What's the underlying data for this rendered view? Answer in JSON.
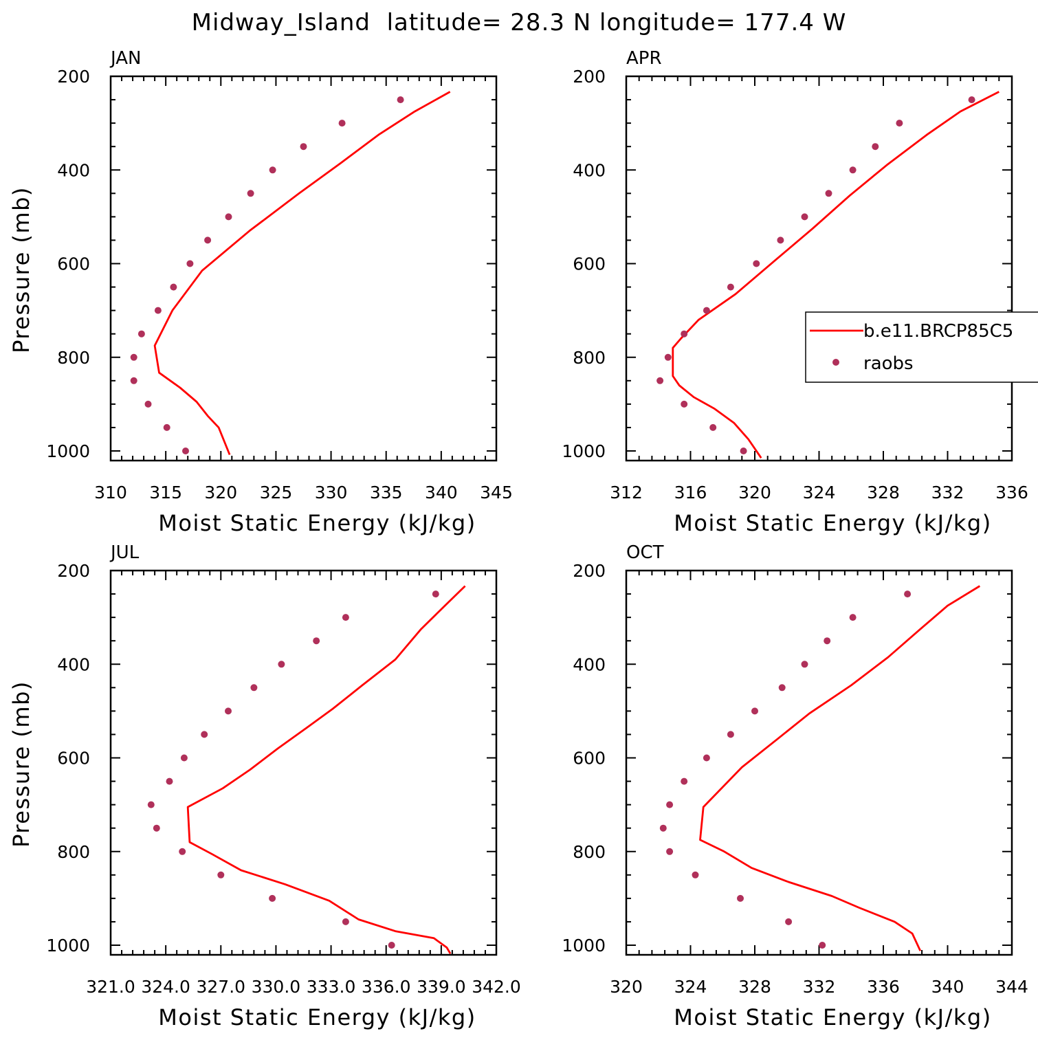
{
  "title": "Midway_Island  latitude= 28.3 N longitude= 177.4 W",
  "legend": {
    "model_label": "b.e11.BRCP85C5",
    "obs_label": "raobs",
    "model_color": "#ff0000",
    "obs_color": "#b0305a"
  },
  "chart_data": [
    {
      "type": "line",
      "title": "JAN",
      "xlabel": "Moist Static Energy (kJ/kg)",
      "ylabel": "Pressure (mb)",
      "xlim": [
        310,
        345
      ],
      "xticks": [
        310,
        315,
        320,
        325,
        330,
        335,
        340,
        345
      ],
      "xtick_labels": [
        "310",
        "315",
        "320",
        "325",
        "330",
        "335",
        "340",
        "345"
      ],
      "ylim": [
        1025,
        200
      ],
      "yticks": [
        200,
        400,
        600,
        800,
        1000
      ],
      "yticks_minor": [
        250,
        300,
        350,
        450,
        500,
        550,
        650,
        700,
        750,
        850,
        900,
        950
      ],
      "series": [
        {
          "name": "b.e11.BRCP85C5",
          "style": "line",
          "x": [
            340.8,
            337.6,
            334.3,
            330.9,
            327.1,
            322.6,
            318.3,
            315.6,
            314.0,
            314.4,
            316.3,
            317.8,
            318.8,
            319.8,
            320.8
          ],
          "y": [
            233,
            275,
            325,
            385,
            450,
            530,
            615,
            700,
            775,
            833,
            865,
            895,
            925,
            950,
            1008
          ]
        },
        {
          "name": "raobs",
          "style": "scatter",
          "x": [
            336.3,
            331.0,
            327.5,
            324.7,
            322.7,
            320.7,
            318.8,
            317.2,
            315.7,
            314.3,
            312.8,
            312.1,
            312.1,
            313.4,
            315.1,
            316.8
          ],
          "y": [
            250,
            300,
            350,
            400,
            450,
            500,
            550,
            600,
            650,
            700,
            750,
            800,
            850,
            900,
            950,
            1000
          ]
        }
      ]
    },
    {
      "type": "line",
      "title": "APR",
      "xlabel": "Moist Static Energy (kJ/kg)",
      "ylabel": "",
      "xlim": [
        312,
        336
      ],
      "xticks": [
        312,
        316,
        320,
        324,
        328,
        332,
        336
      ],
      "xtick_labels": [
        "312",
        "316",
        "320",
        "324",
        "328",
        "332",
        "336"
      ],
      "ylim": [
        1025,
        200
      ],
      "yticks": [
        200,
        400,
        600,
        800,
        1000
      ],
      "yticks_minor": [
        250,
        300,
        350,
        450,
        500,
        550,
        650,
        700,
        750,
        850,
        900,
        950
      ],
      "series": [
        {
          "name": "b.e11.BRCP85C5",
          "style": "line",
          "x": [
            335.2,
            332.8,
            330.7,
            328.2,
            325.9,
            323.6,
            321.2,
            318.8,
            316.5,
            315.4,
            314.9,
            314.9,
            315.3,
            316.2,
            317.5,
            318.7,
            319.6,
            320.4
          ],
          "y": [
            233,
            275,
            325,
            390,
            455,
            525,
            595,
            665,
            720,
            760,
            780,
            840,
            860,
            885,
            910,
            940,
            975,
            1015
          ]
        },
        {
          "name": "raobs",
          "style": "scatter",
          "x": [
            333.5,
            329.0,
            327.5,
            326.1,
            324.6,
            323.1,
            321.6,
            320.1,
            318.5,
            317.0,
            315.6,
            314.6,
            314.1,
            315.6,
            317.4,
            319.3
          ],
          "y": [
            250,
            300,
            350,
            400,
            450,
            500,
            550,
            600,
            650,
            700,
            750,
            800,
            850,
            900,
            950,
            1000
          ]
        }
      ]
    },
    {
      "type": "line",
      "title": "JUL",
      "xlabel": "Moist Static Energy (kJ/kg)",
      "ylabel": "Pressure (mb)",
      "xlim": [
        321.0,
        342.0
      ],
      "xticks": [
        321.0,
        324.0,
        327.0,
        330.0,
        333.0,
        336.0,
        339.0,
        342.0
      ],
      "xtick_labels": [
        "321.0",
        "324.0",
        "327.0",
        "330.0",
        "333.0",
        "336.0",
        "339.0",
        "342.0"
      ],
      "ylim": [
        1025,
        200
      ],
      "yticks": [
        200,
        400,
        600,
        800,
        1000
      ],
      "yticks_minor": [
        250,
        300,
        350,
        450,
        500,
        550,
        650,
        700,
        750,
        850,
        900,
        950
      ],
      "series": [
        {
          "name": "b.e11.BRCP85C5",
          "style": "line",
          "x": [
            340.3,
            339.2,
            337.9,
            336.5,
            334.7,
            333.1,
            331.7,
            330.1,
            328.6,
            327.1,
            325.2,
            325.3,
            326.5,
            328.1,
            330.5,
            332.9,
            334.5,
            336.5,
            338.6,
            339.3,
            339.5
          ],
          "y": [
            233,
            275,
            325,
            390,
            445,
            495,
            535,
            580,
            625,
            665,
            705,
            780,
            805,
            840,
            870,
            905,
            945,
            970,
            985,
            1005,
            1018
          ]
        },
        {
          "name": "raobs",
          "style": "scatter",
          "x": [
            338.7,
            333.8,
            332.2,
            330.3,
            328.8,
            327.4,
            326.1,
            325.0,
            324.2,
            323.2,
            323.5,
            324.9,
            327.0,
            329.8,
            333.8,
            336.3
          ],
          "y": [
            250,
            300,
            350,
            400,
            450,
            500,
            550,
            600,
            650,
            700,
            750,
            800,
            850,
            900,
            950,
            1000
          ]
        }
      ]
    },
    {
      "type": "line",
      "title": "OCT",
      "xlabel": "Moist Static Energy (kJ/kg)",
      "ylabel": "",
      "xlim": [
        320,
        344
      ],
      "xticks": [
        320,
        324,
        328,
        332,
        336,
        340,
        344
      ],
      "xtick_labels": [
        "320",
        "324",
        "328",
        "332",
        "336",
        "340",
        "344"
      ],
      "ylim": [
        1025,
        200
      ],
      "yticks": [
        200,
        400,
        600,
        800,
        1000
      ],
      "yticks_minor": [
        250,
        300,
        350,
        450,
        500,
        550,
        650,
        700,
        750,
        850,
        900,
        950
      ],
      "series": [
        {
          "name": "b.e11.BRCP85C5",
          "style": "line",
          "x": [
            342.0,
            340.0,
            338.3,
            336.3,
            334.0,
            331.4,
            329.4,
            327.2,
            324.8,
            324.6,
            326.1,
            327.8,
            330.1,
            332.8,
            334.5,
            336.7,
            337.8,
            338.3
          ],
          "y": [
            233,
            275,
            325,
            385,
            445,
            505,
            560,
            620,
            705,
            775,
            800,
            835,
            865,
            895,
            920,
            950,
            975,
            1012
          ]
        },
        {
          "name": "raobs",
          "style": "scatter",
          "x": [
            337.5,
            334.1,
            332.5,
            331.1,
            329.7,
            328.0,
            326.5,
            325.0,
            323.6,
            322.7,
            322.3,
            322.7,
            324.3,
            327.1,
            330.1,
            332.2
          ],
          "y": [
            250,
            300,
            350,
            400,
            450,
            500,
            550,
            600,
            650,
            700,
            750,
            800,
            850,
            900,
            950,
            1000
          ]
        }
      ]
    }
  ]
}
